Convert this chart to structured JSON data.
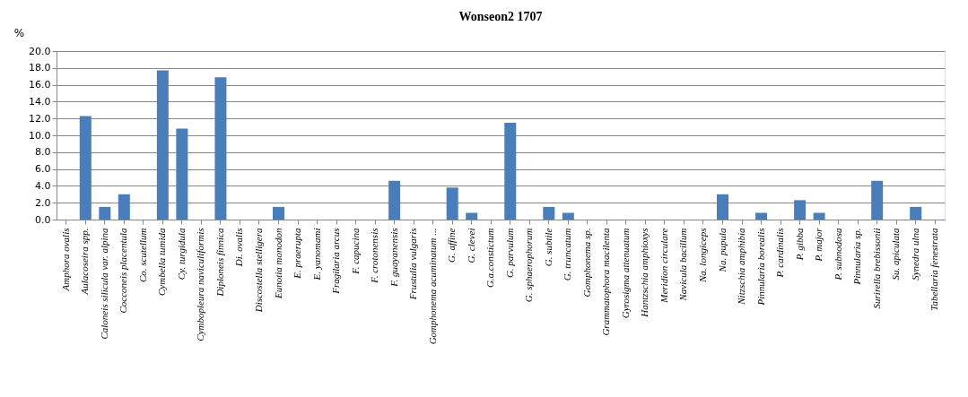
{
  "chart_data": {
    "type": "bar",
    "title": "Wonseon2 1707",
    "ylabel": "%",
    "categories": [
      "Amphora ovalis",
      "Aulacoseira spp.",
      "Caloneis silicula var. alpina",
      "Cocconeis placentula",
      "Co. scutellum",
      "Cymbella tumida",
      "Cy. turgidula",
      "Cymbopleura naviculiformis",
      "Diploneis finnica",
      "Di. ovalis",
      "Discostella stelligera",
      "Eunotia monodon",
      "E. praerupta",
      "E. yanomami",
      "Fragilaria arcus",
      "F. capucina",
      "F. crotonensis",
      "F. guayanensis",
      "Frustulia vulgaris",
      "Gomphonema acuminatum ...",
      "G. affine",
      "G. clevei",
      "G.a.constictum",
      "G. parvulum",
      "G. sphaerophorum",
      "G. subtile",
      "G. truncatum",
      "Gomphonema sp.",
      "Grammatophora macilenta",
      "Gyrosigma attenuatum",
      "Hantzschia amphioxys",
      "Meridion circulare",
      "Navicula bacillum",
      "Na. longiceps",
      "Na. pupula",
      "Nitzschia amphibia",
      "Pinnularia borealis",
      "P. cardinalis",
      "P. gibba",
      "P. major",
      "P. subnodosa",
      "Pinnularia sp.",
      "Surirella brebissonii",
      "Su. apiculata",
      "Synedra ulna",
      "Tabellaria fenestrata"
    ],
    "values": [
      0,
      12.3,
      1.5,
      3.0,
      0,
      17.7,
      10.8,
      0,
      16.9,
      0,
      0,
      1.5,
      0,
      0,
      0,
      0,
      0,
      4.6,
      0,
      0,
      3.8,
      0.8,
      0,
      11.5,
      0,
      1.5,
      0.8,
      0,
      0,
      0,
      0,
      0,
      0,
      0,
      3.0,
      0,
      0.8,
      0,
      2.3,
      0.8,
      0,
      0,
      4.6,
      0,
      1.5,
      0
    ],
    "color": "#4a7ebb",
    "ylim": [
      0,
      20
    ],
    "yticks": [
      {
        "value": 0,
        "label": "0.0"
      },
      {
        "value": 2,
        "label": "2.0"
      },
      {
        "value": 4,
        "label": "4.0"
      },
      {
        "value": 6,
        "label": "6.0"
      },
      {
        "value": 8,
        "label": "8.0"
      },
      {
        "value": 10,
        "label": "10.0"
      },
      {
        "value": 12,
        "label": "12.0"
      },
      {
        "value": 14,
        "label": "14.0"
      },
      {
        "value": 16,
        "label": "16.0"
      },
      {
        "value": 18,
        "label": "18.0"
      },
      {
        "value": 20,
        "label": "20.0"
      }
    ],
    "grid": "y"
  }
}
